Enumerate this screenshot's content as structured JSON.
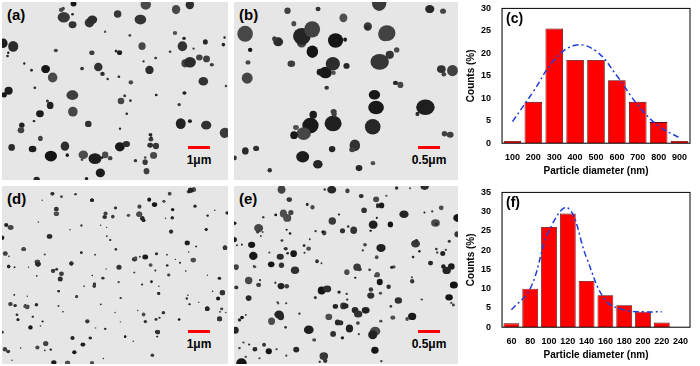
{
  "panels": [
    {
      "letter": "(a)",
      "scale_bar": "1μm"
    },
    {
      "letter": "(b)",
      "scale_bar": "0.5μm"
    },
    {
      "letter": "(d)",
      "scale_bar": "1μm"
    },
    {
      "letter": "(e)",
      "scale_bar": "0.5μm"
    }
  ],
  "chart_data": [
    {
      "type": "bar",
      "letter": "(c)",
      "x_label": "Particle diameter (nm)",
      "y_label": "Counts (%)",
      "categories": [
        "100",
        "200",
        "300",
        "400",
        "500",
        "600",
        "700",
        "800",
        "900"
      ],
      "series": [
        {
          "type": "bar",
          "color": "#ff0000",
          "values": [
            0.5,
            9.2,
            25.5,
            18.5,
            18.5,
            14,
            9.2,
            4.7,
            0.5
          ]
        },
        {
          "type": "line",
          "color": "#1f3fd6",
          "line_style": "dashdot",
          "values": [
            4.8,
            11.5,
            18.5,
            21.8,
            20.5,
            15,
            8.5,
            3.8,
            1.2
          ]
        }
      ],
      "ylim": [
        0,
        30
      ],
      "yticks": [
        0,
        5,
        10,
        15,
        20,
        25,
        30
      ],
      "grid": false
    },
    {
      "type": "bar",
      "letter": "(f)",
      "x_label": "Particle diameter (nm)",
      "y_label": "Counts (%)",
      "categories": [
        "60",
        "80",
        "100",
        "120",
        "140",
        "160",
        "180",
        "200",
        "220",
        "240"
      ],
      "series": [
        {
          "type": "bar",
          "color": "#ff0000",
          "values": [
            1,
            10,
            26,
            29.5,
            12,
            8.3,
            5.7,
            4,
            1.2,
            null
          ]
        },
        {
          "type": "line",
          "color": "#1f3fd6",
          "line_style": "dashdot",
          "values": [
            4.5,
            10,
            25,
            31,
            18,
            7,
            4.5,
            4,
            4,
            null
          ]
        }
      ],
      "ylim": [
        0,
        35
      ],
      "yticks": [
        0,
        5,
        10,
        15,
        20,
        25,
        30,
        35
      ],
      "grid": false
    }
  ]
}
